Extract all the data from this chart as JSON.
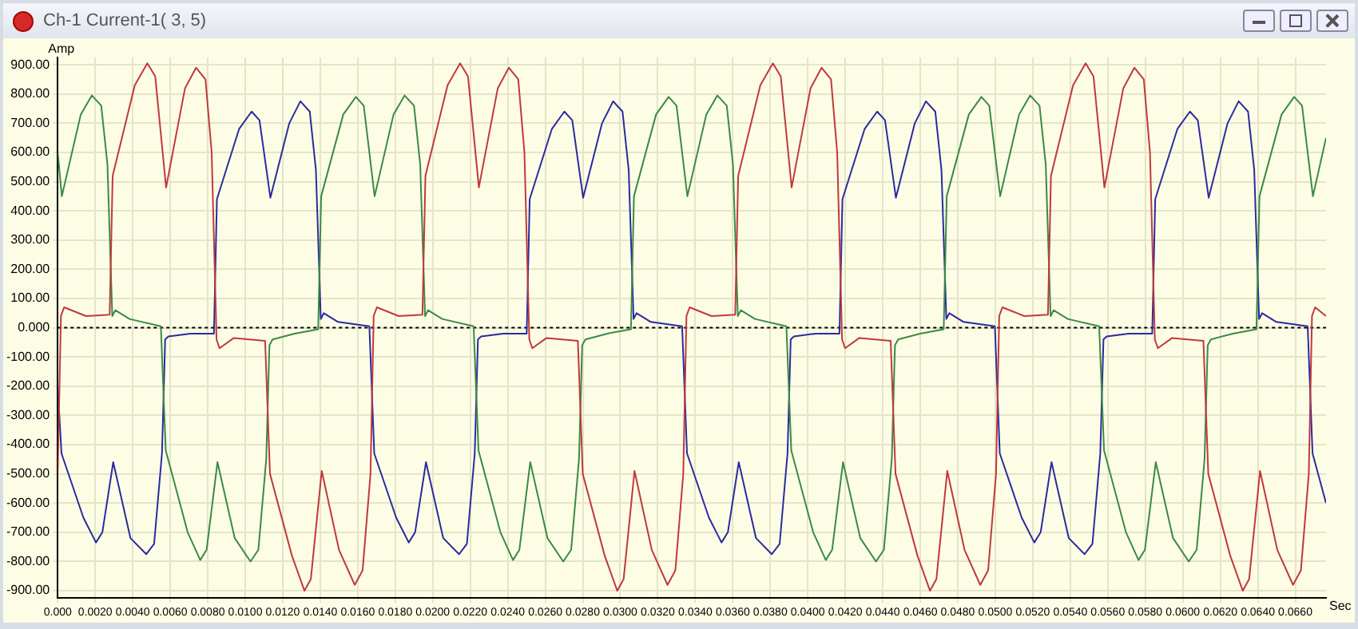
{
  "chart_data": {
    "type": "line",
    "title": "Ch-1 Current-1( 3, 5)",
    "xlabel": "Sec",
    "ylabel": "Amp",
    "xlim": [
      0,
      0.06764
    ],
    "ylim": [
      -925,
      925
    ],
    "xticks": [
      {
        "value": 0,
        "label": "0.000"
      },
      {
        "value": 0.002,
        "label": "0.0020"
      },
      {
        "value": 0.004,
        "label": "0.0040"
      },
      {
        "value": 0.006,
        "label": "0.0060"
      },
      {
        "value": 0.008,
        "label": "0.0080"
      },
      {
        "value": 0.01,
        "label": "0.0100"
      },
      {
        "value": 0.012,
        "label": "0.0120"
      },
      {
        "value": 0.014,
        "label": "0.0140"
      },
      {
        "value": 0.016,
        "label": "0.0160"
      },
      {
        "value": 0.018,
        "label": "0.0180"
      },
      {
        "value": 0.02,
        "label": "0.0200"
      },
      {
        "value": 0.022,
        "label": "0.0220"
      },
      {
        "value": 0.024,
        "label": "0.0240"
      },
      {
        "value": 0.026,
        "label": "0.0260"
      },
      {
        "value": 0.028,
        "label": "0.0280"
      },
      {
        "value": 0.03,
        "label": "0.0300"
      },
      {
        "value": 0.032,
        "label": "0.0320"
      },
      {
        "value": 0.034,
        "label": "0.0340"
      },
      {
        "value": 0.036,
        "label": "0.0360"
      },
      {
        "value": 0.038,
        "label": "0.0380"
      },
      {
        "value": 0.04,
        "label": "0.0400"
      },
      {
        "value": 0.042,
        "label": "0.0420"
      },
      {
        "value": 0.044,
        "label": "0.0440"
      },
      {
        "value": 0.046,
        "label": "0.0460"
      },
      {
        "value": 0.048,
        "label": "0.0480"
      },
      {
        "value": 0.05,
        "label": "0.0500"
      },
      {
        "value": 0.052,
        "label": "0.0520"
      },
      {
        "value": 0.054,
        "label": "0.0540"
      },
      {
        "value": 0.056,
        "label": "0.0560"
      },
      {
        "value": 0.058,
        "label": "0.0580"
      },
      {
        "value": 0.06,
        "label": "0.0600"
      },
      {
        "value": 0.062,
        "label": "0.0620"
      },
      {
        "value": 0.064,
        "label": "0.0640"
      },
      {
        "value": 0.066,
        "label": "0.0660"
      }
    ],
    "yticks": [
      {
        "value": 900,
        "label": "900.00"
      },
      {
        "value": 800,
        "label": "800.00"
      },
      {
        "value": 700,
        "label": "700.00"
      },
      {
        "value": 600,
        "label": "600.00"
      },
      {
        "value": 500,
        "label": "500.00"
      },
      {
        "value": 400,
        "label": "400.00"
      },
      {
        "value": 300,
        "label": "300.00"
      },
      {
        "value": 200,
        "label": "200.00"
      },
      {
        "value": 100,
        "label": "100.00"
      },
      {
        "value": 0,
        "label": "0.000"
      },
      {
        "value": -100,
        "label": "-100.00"
      },
      {
        "value": -200,
        "label": "-200.00"
      },
      {
        "value": -300,
        "label": "-300.00"
      },
      {
        "value": -400,
        "label": "-400.00"
      },
      {
        "value": -500,
        "label": "-500.00"
      },
      {
        "value": -600,
        "label": "-600.00"
      },
      {
        "value": -700,
        "label": "-700.00"
      },
      {
        "value": -800,
        "label": "-800.00"
      },
      {
        "value": -900,
        "label": "-900.00"
      }
    ],
    "grid": true,
    "ref_lines": [
      {
        "axis": "y",
        "value": 0,
        "color": "#000000",
        "line_style": "dotted"
      }
    ],
    "series": [
      {
        "color": "#c0393b",
        "x": [
          0,
          0.00017,
          0.00034,
          0.00151,
          0.00277,
          0.00293,
          0.00411,
          0.00478,
          0.0052,
          0.00578,
          0.00679,
          0.00738,
          0.00788,
          0.00821,
          0.00847,
          0.00863,
          0.00939,
          0.01106,
          0.01132,
          0.01249,
          0.01316,
          0.0135,
          0.01408,
          0.015,
          0.01584,
          0.01626,
          0.01668,
          0.01685,
          0.01702,
          0.01819,
          0.01945,
          0.01961,
          0.02079,
          0.02146,
          0.02188,
          0.02246,
          0.02347,
          0.02406,
          0.02456,
          0.02489,
          0.02515,
          0.02531,
          0.02607,
          0.02774,
          0.028,
          0.02917,
          0.02984,
          0.03018,
          0.03076,
          0.03168,
          0.03252,
          0.03294,
          0.03336,
          0.03353,
          0.0337,
          0.03487,
          0.03613,
          0.03629,
          0.03747,
          0.03814,
          0.03856,
          0.03914,
          0.04015,
          0.04074,
          0.04124,
          0.04157,
          0.04183,
          0.04199,
          0.04275,
          0.04442,
          0.04468,
          0.04585,
          0.04652,
          0.04686,
          0.04744,
          0.04836,
          0.0492,
          0.04962,
          0.05004,
          0.05021,
          0.05038,
          0.05155,
          0.05281,
          0.05297,
          0.05415,
          0.05482,
          0.05524,
          0.05582,
          0.05683,
          0.05742,
          0.05792,
          0.05825,
          0.05851,
          0.05867,
          0.05943,
          0.0611,
          0.06136,
          0.06253,
          0.0632,
          0.06354,
          0.06412,
          0.06504,
          0.06588,
          0.0663,
          0.06672,
          0.06689,
          0.06706,
          0.06764
        ],
        "values": [
          -500,
          40,
          70,
          40,
          45,
          520,
          830,
          905,
          860,
          480,
          820,
          890,
          850,
          600,
          -40,
          -70,
          -35,
          -45,
          -500,
          -780,
          -900,
          -860,
          -490,
          -760,
          -880,
          -830,
          -500,
          40,
          70,
          40,
          45,
          520,
          830,
          905,
          860,
          480,
          820,
          890,
          850,
          600,
          -40,
          -70,
          -35,
          -45,
          -500,
          -780,
          -900,
          -860,
          -490,
          -760,
          -880,
          -830,
          -500,
          40,
          70,
          40,
          45,
          520,
          830,
          905,
          860,
          480,
          820,
          890,
          850,
          600,
          -40,
          -70,
          -35,
          -45,
          -500,
          -780,
          -900,
          -860,
          -490,
          -760,
          -880,
          -830,
          -500,
          40,
          70,
          40,
          45,
          520,
          830,
          905,
          860,
          480,
          820,
          890,
          850,
          600,
          -40,
          -70,
          -35,
          -45,
          -500,
          -780,
          -900,
          -860,
          -490,
          -760,
          -880,
          -830,
          -500,
          40,
          70,
          40
        ]
      },
      {
        "color": "#3a8a44",
        "x": [
          0,
          0.00022,
          0.00123,
          0.00182,
          0.00232,
          0.00265,
          0.00291,
          0.00307,
          0.00383,
          0.0055,
          0.00576,
          0.00693,
          0.0076,
          0.00794,
          0.00852,
          0.00944,
          0.01028,
          0.0107,
          0.01112,
          0.01129,
          0.01146,
          0.01263,
          0.01389,
          0.01405,
          0.01523,
          0.0159,
          0.01632,
          0.0169,
          0.01791,
          0.0185,
          0.019,
          0.01933,
          0.01959,
          0.01975,
          0.02051,
          0.02218,
          0.02244,
          0.02361,
          0.02428,
          0.02462,
          0.0252,
          0.02612,
          0.02696,
          0.02738,
          0.0278,
          0.02797,
          0.02814,
          0.02931,
          0.03057,
          0.03073,
          0.03191,
          0.03258,
          0.033,
          0.03358,
          0.03459,
          0.03518,
          0.03568,
          0.03601,
          0.03627,
          0.03643,
          0.03719,
          0.03886,
          0.03912,
          0.04029,
          0.04096,
          0.0413,
          0.04188,
          0.0428,
          0.04364,
          0.04406,
          0.04448,
          0.04465,
          0.04482,
          0.04599,
          0.04725,
          0.04741,
          0.04859,
          0.04926,
          0.04968,
          0.05026,
          0.05127,
          0.05186,
          0.05236,
          0.05269,
          0.05295,
          0.05311,
          0.05387,
          0.05554,
          0.0558,
          0.05697,
          0.05764,
          0.05798,
          0.05856,
          0.05948,
          0.06032,
          0.06074,
          0.06116,
          0.06133,
          0.0615,
          0.06267,
          0.06393,
          0.06409,
          0.06527,
          0.06594,
          0.06636,
          0.06694,
          0.06764
        ],
        "values": [
          600,
          450,
          730,
          795,
          760,
          560,
          40,
          60,
          30,
          5,
          -420,
          -700,
          -795,
          -760,
          -460,
          -720,
          -800,
          -760,
          -450,
          -60,
          -40,
          -20,
          -5,
          450,
          730,
          790,
          760,
          450,
          730,
          795,
          760,
          560,
          40,
          60,
          30,
          5,
          -420,
          -700,
          -795,
          -760,
          -460,
          -720,
          -800,
          -760,
          -450,
          -60,
          -40,
          -20,
          -5,
          450,
          730,
          790,
          760,
          450,
          730,
          795,
          760,
          560,
          40,
          60,
          30,
          5,
          -420,
          -700,
          -795,
          -760,
          -460,
          -720,
          -800,
          -760,
          -450,
          -60,
          -40,
          -20,
          -5,
          450,
          730,
          790,
          760,
          450,
          730,
          795,
          760,
          560,
          40,
          60,
          30,
          5,
          -420,
          -700,
          -795,
          -760,
          -460,
          -720,
          -800,
          -760,
          -450,
          -60,
          -40,
          -20,
          -5,
          450,
          730,
          790,
          760,
          450,
          650
        ]
      },
      {
        "color": "#2a2aa0",
        "x": [
          0,
          0.0002,
          0.00137,
          0.00204,
          0.00238,
          0.00296,
          0.00388,
          0.00472,
          0.00514,
          0.00556,
          0.00573,
          0.0059,
          0.00707,
          0.00833,
          0.00849,
          0.00967,
          0.01034,
          0.01076,
          0.01134,
          0.01235,
          0.01294,
          0.01344,
          0.01377,
          0.01403,
          0.01419,
          0.01495,
          0.01662,
          0.01688,
          0.01805,
          0.01872,
          0.01906,
          0.01964,
          0.02056,
          0.0214,
          0.02182,
          0.02224,
          0.02241,
          0.02258,
          0.02375,
          0.02501,
          0.02517,
          0.02635,
          0.02702,
          0.02744,
          0.02802,
          0.02903,
          0.02962,
          0.03012,
          0.03045,
          0.03071,
          0.03087,
          0.03163,
          0.0333,
          0.03356,
          0.03473,
          0.0354,
          0.03574,
          0.03632,
          0.03724,
          0.03808,
          0.0385,
          0.03892,
          0.03909,
          0.03926,
          0.04043,
          0.04169,
          0.04185,
          0.04303,
          0.0437,
          0.04412,
          0.0447,
          0.04571,
          0.0463,
          0.0468,
          0.04713,
          0.04739,
          0.04755,
          0.04831,
          0.04998,
          0.05024,
          0.05141,
          0.05208,
          0.05242,
          0.053,
          0.05392,
          0.05476,
          0.05518,
          0.0556,
          0.05577,
          0.05594,
          0.05711,
          0.05837,
          0.05853,
          0.05971,
          0.06038,
          0.0608,
          0.06138,
          0.06239,
          0.06298,
          0.06348,
          0.06381,
          0.06407,
          0.06423,
          0.06499,
          0.06666,
          0.06692,
          0.06764
        ],
        "values": [
          -200,
          -430,
          -650,
          -735,
          -700,
          -460,
          -720,
          -775,
          -740,
          -430,
          -40,
          -30,
          -20,
          -20,
          440,
          680,
          740,
          710,
          445,
          700,
          775,
          740,
          540,
          30,
          50,
          20,
          5,
          -430,
          -650,
          -735,
          -700,
          -460,
          -720,
          -775,
          -740,
          -430,
          -40,
          -30,
          -20,
          -20,
          440,
          680,
          740,
          710,
          445,
          700,
          775,
          740,
          540,
          30,
          50,
          20,
          5,
          -430,
          -650,
          -735,
          -700,
          -460,
          -720,
          -775,
          -740,
          -430,
          -40,
          -30,
          -20,
          -20,
          440,
          680,
          740,
          710,
          445,
          700,
          775,
          740,
          540,
          30,
          50,
          20,
          5,
          -430,
          -650,
          -735,
          -700,
          -460,
          -720,
          -775,
          -740,
          -430,
          -40,
          -30,
          -20,
          -20,
          440,
          680,
          740,
          710,
          445,
          700,
          775,
          740,
          540,
          30,
          50,
          20,
          5,
          -430,
          -600
        ]
      }
    ]
  }
}
